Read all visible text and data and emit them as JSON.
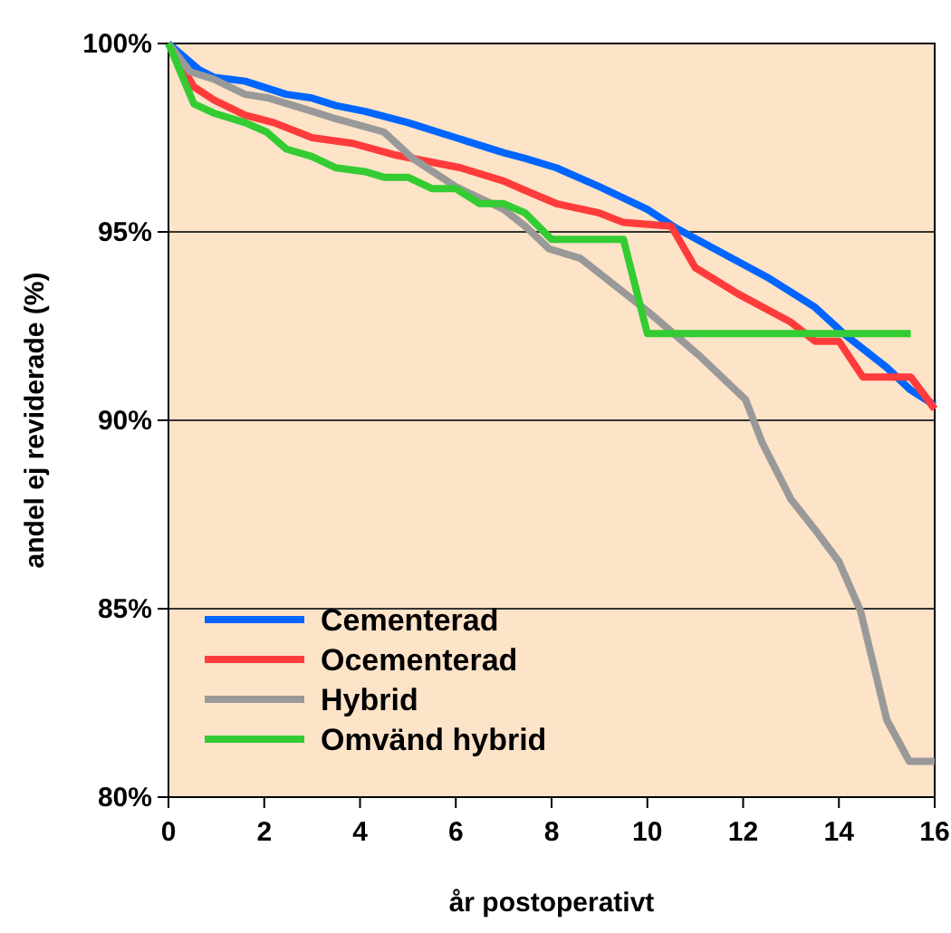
{
  "chart_data": {
    "type": "line",
    "xlabel": "år postoperativt",
    "ylabel": "andel ej reviderade (%)",
    "xlim": [
      0,
      16
    ],
    "xticks": [
      0,
      2,
      4,
      6,
      8,
      10,
      12,
      14,
      16
    ],
    "ylim": [
      80,
      100
    ],
    "yticks": [
      {
        "value": 80,
        "label": "80%"
      },
      {
        "value": 85,
        "label": "85%"
      },
      {
        "value": 90,
        "label": "90%"
      },
      {
        "value": 95,
        "label": "95%"
      },
      {
        "value": 100,
        "label": "100%"
      }
    ],
    "grid": "y",
    "legend": "bottom left",
    "marker": "none",
    "line_style": "solid",
    "series": [
      {
        "name": "Cementerad",
        "color": "#0066ff",
        "x": [
          0,
          0.64,
          0.95,
          1.6,
          2.46,
          3.0,
          3.5,
          4.1,
          5.0,
          6.0,
          7.0,
          7.45,
          8.1,
          9.0,
          10.0,
          10.6,
          12.5,
          13.5,
          14.1,
          15.0,
          15.5,
          16
        ],
        "values": [
          100,
          99.3,
          99.1,
          99.0,
          98.65,
          98.55,
          98.35,
          98.2,
          97.9,
          97.5,
          97.1,
          96.95,
          96.7,
          96.2,
          95.6,
          95.1,
          93.8,
          93.0,
          92.3,
          91.4,
          90.8,
          90.4
        ]
      },
      {
        "name": "Ocementerad",
        "color": "#ff3b3b",
        "x": [
          0,
          0.53,
          0.95,
          1.6,
          2.2,
          3.0,
          3.85,
          4.7,
          6.1,
          7.0,
          7.45,
          8.1,
          9.0,
          9.5,
          10.5,
          11.0,
          11.9,
          13.0,
          13.5,
          14.0,
          14.5,
          15.5,
          16
        ],
        "values": [
          100,
          98.85,
          98.5,
          98.1,
          97.9,
          97.5,
          97.35,
          97.05,
          96.7,
          96.35,
          96.1,
          95.75,
          95.5,
          95.25,
          95.15,
          94.05,
          93.35,
          92.6,
          92.1,
          92.1,
          91.15,
          91.15,
          90.3
        ]
      },
      {
        "name": "Hybrid",
        "color": "#999999",
        "x": [
          0,
          0.45,
          0.95,
          1.6,
          2.1,
          3.0,
          3.5,
          4.5,
          5.1,
          6.0,
          7.0,
          7.45,
          7.95,
          8.6,
          9.1,
          10.0,
          11.1,
          12.05,
          12.4,
          13.0,
          13.5,
          14.0,
          14.45,
          15.0,
          15.47,
          16
        ],
        "values": [
          100,
          99.25,
          99.05,
          98.65,
          98.55,
          98.2,
          98.0,
          97.65,
          96.95,
          96.2,
          95.6,
          95.15,
          94.55,
          94.3,
          93.8,
          92.9,
          91.7,
          90.55,
          89.4,
          87.9,
          87.1,
          86.25,
          84.95,
          82.05,
          80.95,
          80.95
        ]
      },
      {
        "name": "Omvänd hybrid",
        "color": "#33cc33",
        "x": [
          0,
          0.53,
          0.95,
          1.6,
          2.05,
          2.46,
          3.0,
          3.5,
          4.1,
          4.5,
          5.0,
          5.5,
          6.0,
          6.5,
          7.0,
          7.45,
          8.0,
          9.5,
          10.0,
          15.5
        ],
        "values": [
          100,
          98.4,
          98.15,
          97.9,
          97.65,
          97.2,
          97.0,
          96.7,
          96.6,
          96.45,
          96.45,
          96.15,
          96.15,
          95.75,
          95.75,
          95.5,
          94.8,
          94.8,
          92.3,
          92.3
        ]
      }
    ]
  }
}
